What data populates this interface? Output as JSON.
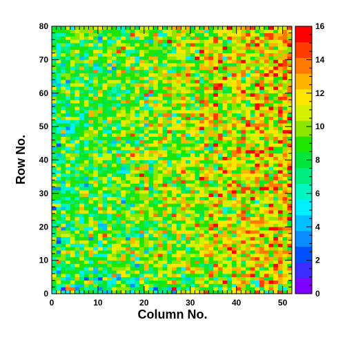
{
  "chart_data": {
    "type": "heatmap",
    "xlabel": "Column No.",
    "ylabel": "Row No.",
    "x_range": [
      0,
      52
    ],
    "y_range": [
      0,
      80
    ],
    "x_bins": 52,
    "y_bins": 80,
    "x_ticks": [
      0,
      10,
      20,
      30,
      40,
      50
    ],
    "y_ticks": [
      0,
      10,
      20,
      30,
      40,
      50,
      60,
      70,
      80
    ],
    "z_range": [
      0,
      16
    ],
    "z_ticks": [
      0,
      2,
      4,
      6,
      8,
      10,
      12,
      14,
      16
    ],
    "colormap": [
      "#7f00ff",
      "#3b2cff",
      "#0050ff",
      "#0a8cff",
      "#00c0ff",
      "#00f0ff",
      "#00f5c0",
      "#00ee80",
      "#00e63c",
      "#1ee600",
      "#8ce600",
      "#d2f000",
      "#ffe600",
      "#ffb400",
      "#ff7a00",
      "#ff3c00",
      "#ff0000"
    ],
    "value_model": "mean counts rise from about 8 at column 0 to about 12 at column 52, with low-count bins scattered near rows 0-5 and column 0; per-bin values vary between 0 and 16",
    "grid": false,
    "legend": "color scale on the right"
  }
}
